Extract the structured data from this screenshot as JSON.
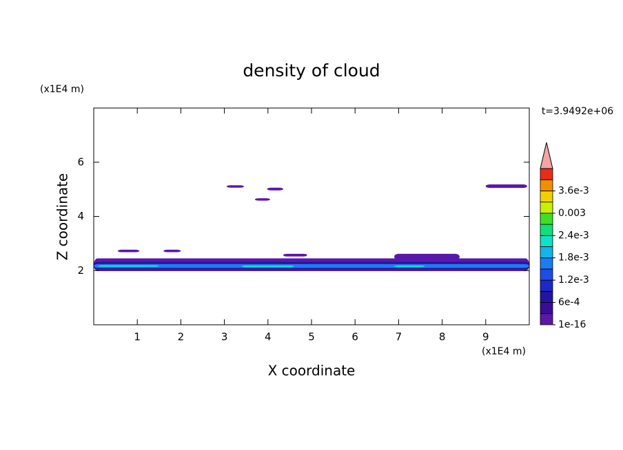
{
  "chart_data": {
    "type": "contour",
    "title": "density of cloud",
    "x_label": "X coordinate",
    "y_label": "Z coordinate",
    "x_unit": "(x1E4 m)",
    "y_unit": "(x1E4 m)",
    "time_label": "t=3.9492e+06",
    "xlim": [
      0,
      10
    ],
    "ylim": [
      0,
      8
    ],
    "xticks": [
      1,
      2,
      3,
      4,
      5,
      6,
      7,
      8,
      9
    ],
    "yticks": [
      2,
      4,
      6
    ],
    "colorbar": {
      "clim": [
        1e-16,
        0.0039
      ],
      "ticks": [
        {
          "value": 1e-16,
          "label": "1e-16"
        },
        {
          "value": 0.0006,
          "label": "6e-4"
        },
        {
          "value": 0.0012,
          "label": "1.2e-3"
        },
        {
          "value": 0.0018,
          "label": "1.8e-3"
        },
        {
          "value": 0.0024,
          "label": "2.4e-3"
        },
        0.003,
        {
          "value": 0.0036,
          "label": "3.6e-3"
        }
      ],
      "colors": [
        "#5a18aa",
        "#3a0c98",
        "#24149e",
        "#1c28c8",
        "#1e4ce4",
        "#1e7cf0",
        "#14b4e8",
        "#10e0c8",
        "#10e078",
        "#40e020",
        "#c8f000",
        "#f0d000",
        "#f09000",
        "#e82c1c"
      ],
      "extend_color": "#f4a4a4"
    },
    "regions": [
      {
        "x": [
          0,
          10
        ],
        "z": [
          1.98,
          2.45
        ],
        "density": 0.0001
      },
      {
        "x": [
          6.9,
          8.4
        ],
        "z": [
          2.4,
          2.62
        ],
        "density": 0.0001
      },
      {
        "x": [
          0,
          10
        ],
        "z": [
          2.04,
          2.32
        ],
        "density": 0.0008
      },
      {
        "x": [
          0,
          10
        ],
        "z": [
          2.1,
          2.24
        ],
        "density": 0.0016
      },
      {
        "x": [
          0.1,
          1.5
        ],
        "z": [
          2.14,
          2.2
        ],
        "density": 0.0022
      },
      {
        "x": [
          3.4,
          4.6
        ],
        "z": [
          2.12,
          2.19
        ],
        "density": 0.0022
      },
      {
        "x": [
          6.9,
          7.6
        ],
        "z": [
          2.13,
          2.19
        ],
        "density": 0.0022
      },
      {
        "x": [
          0.55,
          1.05
        ],
        "z": [
          2.68,
          2.77
        ],
        "density": 0.0001
      },
      {
        "x": [
          1.6,
          2.0
        ],
        "z": [
          2.68,
          2.77
        ],
        "density": 0.0001
      },
      {
        "x": [
          4.35,
          4.9
        ],
        "z": [
          2.52,
          2.62
        ],
        "density": 0.0001
      },
      {
        "x": [
          3.05,
          3.45
        ],
        "z": [
          5.06,
          5.15
        ],
        "density": 0.0001
      },
      {
        "x": [
          3.98,
          4.35
        ],
        "z": [
          4.96,
          5.06
        ],
        "density": 0.0001
      },
      {
        "x": [
          3.7,
          4.05
        ],
        "z": [
          4.58,
          4.67
        ],
        "density": 0.0001
      },
      {
        "x": [
          9.0,
          9.95
        ],
        "z": [
          5.05,
          5.18
        ],
        "density": 0.0001
      }
    ]
  }
}
